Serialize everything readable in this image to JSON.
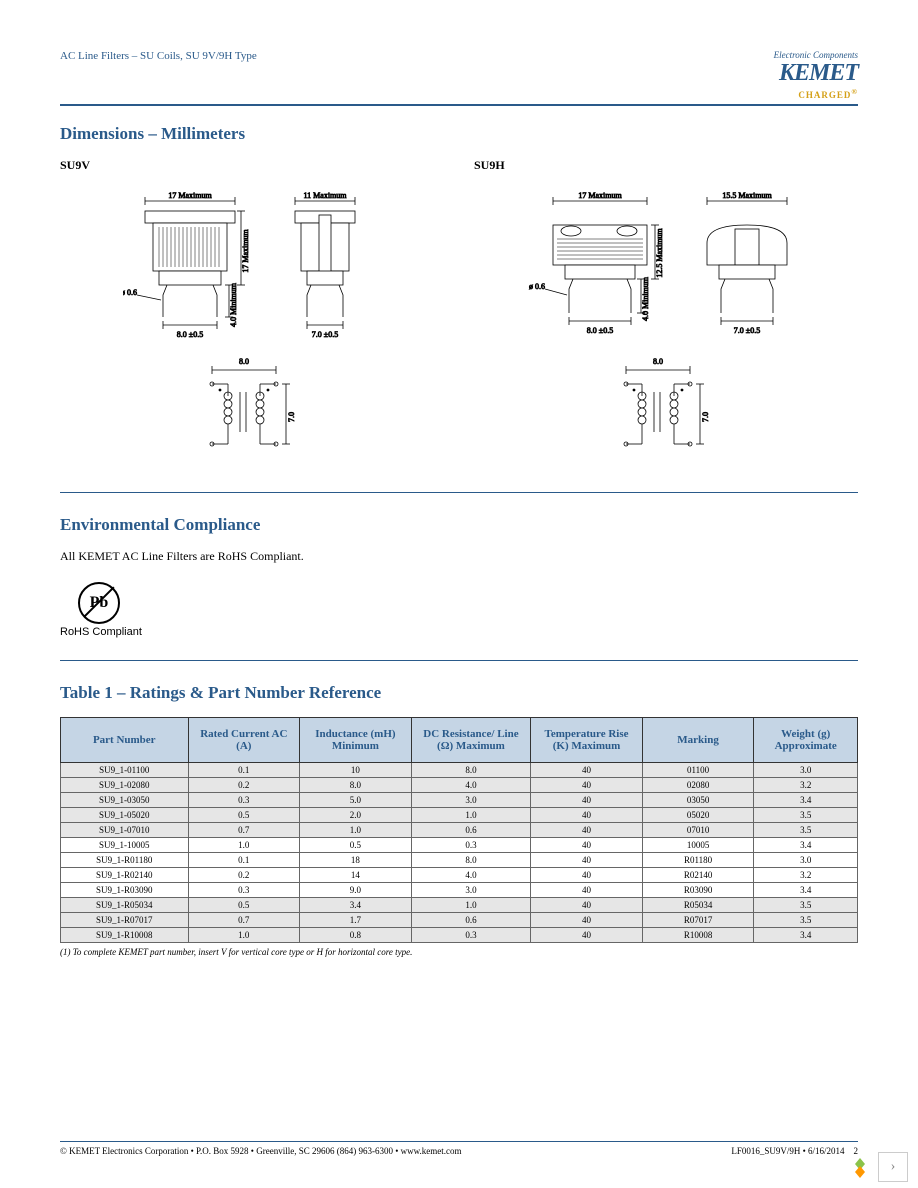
{
  "header": {
    "left": "AC Line Filters – SU Coils, SU 9V/9H Type",
    "ec": "Electronic Components",
    "brand": "KEMET",
    "charged": "CHARGED"
  },
  "sections": {
    "dims_title": "Dimensions – Millimeters",
    "env_title": "Environmental Compliance",
    "env_text": "All KEMET AC Line Filters are RoHS Compliant.",
    "rohs_label": "RoHS Compliant",
    "table_title": "Table 1 – Ratings & Part Number Reference",
    "table_foot": "(1) To complete KEMET part number, insert V for vertical core type or H for horizontal core type."
  },
  "dims": {
    "su9v": {
      "label": "SU9V",
      "w": "17 Maximum",
      "d": "11 Maximum",
      "h": "17 Maximum",
      "pin_dia": "ø 0.6",
      "pitch_x": "8.0 ±0.5",
      "pitch_y": "7.0 ±0.5",
      "lead": "4.0 Minimum",
      "sch_w": "8.0",
      "sch_h": "7.0"
    },
    "su9h": {
      "label": "SU9H",
      "w": "17 Maximum",
      "d": "15.5 Maximum",
      "h": "12.5 Maximum",
      "pin_dia": "ø 0.6",
      "pitch_x": "8.0 ±0.5",
      "pitch_y": "7.0 ±0.5",
      "lead": "4.0 Minimum",
      "sch_w": "8.0",
      "sch_h": "7.0"
    }
  },
  "table": {
    "columns": [
      "Part Number",
      "Rated Current AC (A)",
      "Inductance (mH) Minimum",
      "DC Resistance/ Line (Ω) Maximum",
      "Temperature Rise (K) Maximum",
      "Marking",
      "Weight (g) Approximate"
    ],
    "col_widths": [
      "16%",
      "14%",
      "14%",
      "15%",
      "14%",
      "14%",
      "13%"
    ],
    "header_bg": "#c5d5e5",
    "header_fg": "#2a5a8a",
    "shade_bg": "#e6e6e6",
    "rows": [
      [
        "SU9_1-01100",
        "0.1",
        "10",
        "8.0",
        "40",
        "01100",
        "3.0"
      ],
      [
        "SU9_1-02080",
        "0.2",
        "8.0",
        "4.0",
        "40",
        "02080",
        "3.2"
      ],
      [
        "SU9_1-03050",
        "0.3",
        "5.0",
        "3.0",
        "40",
        "03050",
        "3.4"
      ],
      [
        "SU9_1-05020",
        "0.5",
        "2.0",
        "1.0",
        "40",
        "05020",
        "3.5"
      ],
      [
        "SU9_1-07010",
        "0.7",
        "1.0",
        "0.6",
        "40",
        "07010",
        "3.5"
      ],
      [
        "SU9_1-10005",
        "1.0",
        "0.5",
        "0.3",
        "40",
        "10005",
        "3.4"
      ],
      [
        "SU9_1-R01180",
        "0.1",
        "18",
        "8.0",
        "40",
        "R01180",
        "3.0"
      ],
      [
        "SU9_1-R02140",
        "0.2",
        "14",
        "4.0",
        "40",
        "R02140",
        "3.2"
      ],
      [
        "SU9_1-R03090",
        "0.3",
        "9.0",
        "3.0",
        "40",
        "R03090",
        "3.4"
      ],
      [
        "SU9_1-R05034",
        "0.5",
        "3.4",
        "1.0",
        "40",
        "R05034",
        "3.5"
      ],
      [
        "SU9_1-R07017",
        "0.7",
        "1.7",
        "0.6",
        "40",
        "R07017",
        "3.5"
      ],
      [
        "SU9_1-R10008",
        "1.0",
        "0.8",
        "0.3",
        "40",
        "R10008",
        "3.4"
      ]
    ]
  },
  "footer": {
    "left": "© KEMET Electronics Corporation • P.O. Box 5928 • Greenville, SC 29606 (864) 963-6300 • www.kemet.com",
    "right": "LF0016_SU9V/9H • 6/16/2014",
    "page": "2"
  }
}
